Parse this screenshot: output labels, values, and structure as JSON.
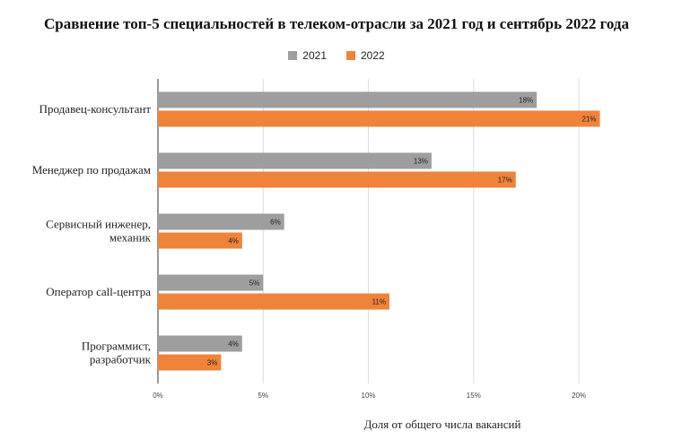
{
  "chart_data": {
    "type": "bar",
    "orientation": "horizontal",
    "title": "Сравнение топ-5 специальностей в телеком-отрасли за 2021 год и сентябрь 2022 года",
    "xlabel": "Доля от общего числа вакансий",
    "ylabel": "",
    "categories": [
      [
        "Продавец-консультант"
      ],
      [
        "Менеджер по продажам"
      ],
      [
        "Сервисный инженер,",
        "механик"
      ],
      [
        "Оператор call-центра"
      ],
      [
        "Программист,",
        "разработчик"
      ]
    ],
    "series": [
      {
        "name": "2021",
        "color": "#9e9e9e",
        "values": [
          18,
          13,
          6,
          5,
          4
        ],
        "labels": [
          "18%",
          "13%",
          "6%",
          "5%",
          "4%"
        ]
      },
      {
        "name": "2022",
        "color": "#f0833a",
        "values": [
          21,
          17,
          4,
          11,
          3
        ],
        "labels": [
          "21%",
          "17%",
          "4%",
          "11%",
          "3%"
        ]
      }
    ],
    "xlim": [
      0,
      22
    ],
    "x_ticks": [
      0,
      5,
      10,
      15,
      20
    ],
    "x_tick_labels": [
      "0%",
      "5%",
      "10%",
      "15%",
      "20%"
    ],
    "grid": true,
    "legend_position": "top-center"
  }
}
